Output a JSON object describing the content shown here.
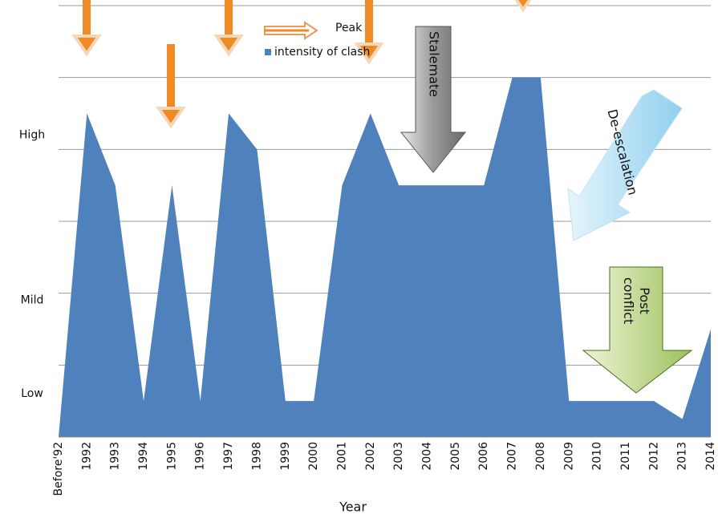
{
  "chart_data": {
    "type": "area",
    "categories": [
      "Before'92",
      "1992",
      "1993",
      "1994",
      "1995",
      "1996",
      "1997",
      "1998",
      "1999",
      "2000",
      "2001",
      "2002",
      "2003",
      "2004",
      "2005",
      "2006",
      "2007",
      "2008",
      "2009",
      "2010",
      "2011",
      "2012",
      "2013",
      "2014"
    ],
    "series": [
      {
        "name": "intensity of clash",
        "color": "#4f81bd",
        "values": [
          0,
          4.5,
          3.5,
          0.5,
          3.5,
          0.5,
          4.5,
          4,
          0.5,
          0.5,
          3.5,
          4.5,
          3.5,
          3.5,
          3.5,
          3.5,
          5,
          5,
          0.5,
          0.5,
          0.5,
          0.5,
          0.25,
          1.5
        ]
      }
    ],
    "ylim": [
      0,
      6
    ],
    "yticks": [
      {
        "value": 0.6,
        "label": "Low"
      },
      {
        "value": 1.9,
        "label": "Mild"
      },
      {
        "value": 4.2,
        "label": "High"
      }
    ],
    "ygrid": [
      1,
      2,
      3,
      4,
      5,
      6
    ],
    "grid": true,
    "xlabel": "Year",
    "peak_legend": "Peak",
    "annotations": [
      "Stalemate",
      "De-escalation",
      "Post conflict"
    ]
  }
}
